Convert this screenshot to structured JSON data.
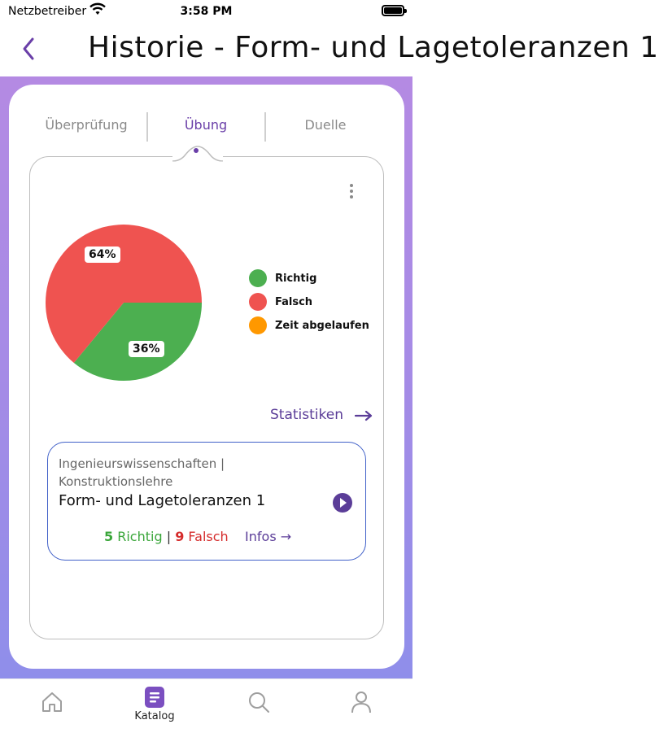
{
  "status_bar": {
    "carrier": "Netzbetreiber",
    "time": "3:58 PM"
  },
  "header": {
    "title": "Historie - Form- und Lagetoleranzen 1"
  },
  "tabs": [
    {
      "label": "Überprüfung",
      "active": false
    },
    {
      "label": "Übung",
      "active": true
    },
    {
      "label": "Duelle",
      "active": false
    }
  ],
  "chart_data": {
    "type": "pie",
    "slices": [
      {
        "label": "Richtig",
        "value": 36,
        "color": "#4caf50"
      },
      {
        "label": "Falsch",
        "value": 64,
        "color": "#ef5350"
      },
      {
        "label": "Zeit abgelaufen",
        "value": 0,
        "color": "#ff9800"
      }
    ],
    "data_labels": [
      "36%",
      "64%"
    ],
    "legend_placement": "right"
  },
  "legend": [
    {
      "label": "Richtig",
      "color": "#4caf50"
    },
    {
      "label": "Falsch",
      "color": "#ef5350"
    },
    {
      "label": "Zeit abgelaufen",
      "color": "#ff9800"
    }
  ],
  "statistics_link": "Statistiken",
  "result_card": {
    "category_line1": "Ingenieurswissenschaften |",
    "category_line2": "Konstruktionslehre",
    "title": "Form- und Lagetoleranzen 1",
    "correct_count": "5",
    "correct_label": "Richtig",
    "separator": "|",
    "wrong_count": "9",
    "wrong_label": "Falsch",
    "infos_label": "Infos"
  },
  "bottom_nav": [
    {
      "icon": "home-icon",
      "label": ""
    },
    {
      "icon": "catalog-icon",
      "label": "Katalog",
      "active": true
    },
    {
      "icon": "search-icon",
      "label": ""
    },
    {
      "icon": "profile-icon",
      "label": ""
    }
  ],
  "colors": {
    "accent": "#5b3d98",
    "correct": "#3aa63a",
    "wrong": "#d52c2c"
  }
}
